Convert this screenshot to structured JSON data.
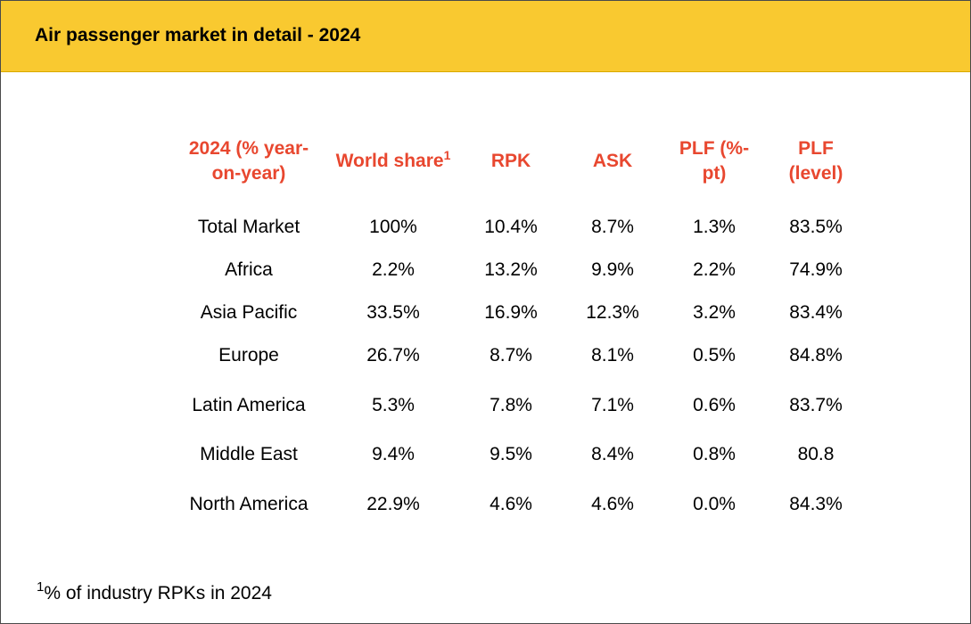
{
  "header": {
    "title": "Air passenger market in detail - 2024",
    "background": "#F9C930"
  },
  "table": {
    "header_color": "#E8472F",
    "columns": {
      "region": "2024 (% year-on-year)",
      "world_share": "World share",
      "world_share_note": "1",
      "rpk": "RPK",
      "ask": "ASK",
      "plf_change": "PLF (%-pt)",
      "plf_level": "PLF (level)"
    },
    "rows": [
      {
        "region": "Total Market",
        "world_share": "100%",
        "rpk": "10.4%",
        "ask": "8.7%",
        "plf_change": "1.3%",
        "plf_level": "83.5%"
      },
      {
        "region": "Africa",
        "world_share": "2.2%",
        "rpk": "13.2%",
        "ask": "9.9%",
        "plf_change": "2.2%",
        "plf_level": "74.9%"
      },
      {
        "region": "Asia Pacific",
        "world_share": "33.5%",
        "rpk": "16.9%",
        "ask": "12.3%",
        "plf_change": "3.2%",
        "plf_level": "83.4%"
      },
      {
        "region": "Europe",
        "world_share": "26.7%",
        "rpk": "8.7%",
        "ask": "8.1%",
        "plf_change": "0.5%",
        "plf_level": "84.8%"
      },
      {
        "region": "Latin America",
        "world_share": "5.3%",
        "rpk": "7.8%",
        "ask": "7.1%",
        "plf_change": "0.6%",
        "plf_level": "83.7%"
      },
      {
        "region": "Middle East",
        "world_share": "9.4%",
        "rpk": "9.5%",
        "ask": "8.4%",
        "plf_change": "0.8%",
        "plf_level": "80.8"
      },
      {
        "region": "North America",
        "world_share": "22.9%",
        "rpk": "4.6%",
        "ask": "4.6%",
        "plf_change": "0.0%",
        "plf_level": "84.3%"
      }
    ]
  },
  "footnote": {
    "marker": "1",
    "text": "% of industry RPKs in 2024"
  }
}
